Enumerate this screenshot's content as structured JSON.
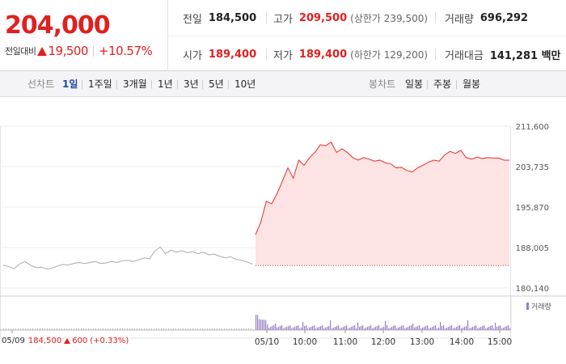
{
  "quote": {
    "price": "204,000",
    "change_label": "전일대비",
    "change_amount": "19,500",
    "change_rate": "+10.57%",
    "prev_close_label": "전일",
    "prev_close": "184,500",
    "high_label": "고가",
    "high": "209,500",
    "upper_limit": "(상한가 239,500)",
    "volume_label": "거래량",
    "volume": "696,292",
    "open_label": "시가",
    "open": "189,400",
    "low_label": "저가",
    "low": "189,400",
    "lower_limit": "(하한가 129,200)",
    "trade_value_label": "거래대금",
    "trade_value": "141,281 백만"
  },
  "toolbar": {
    "line_label": "선차트",
    "line_periods": [
      "1일",
      "1주일",
      "3개월",
      "1년",
      "3년",
      "5년",
      "10년"
    ],
    "active_period": 0,
    "candle_label": "봉차트",
    "candle_periods": [
      "일봉",
      "주봉",
      "월봉"
    ]
  },
  "footer": {
    "date": "05/09",
    "price": "184,500",
    "change": "600",
    "rate": "(+0.33%)"
  },
  "colors": {
    "up": "#e0201f",
    "line": "#e42d2d",
    "area": "#fde3e3",
    "prev_line": "#aaaaaa",
    "volume": "#9a7fc4",
    "active_tab": "#1f49a8"
  },
  "chart_data": {
    "type": "line",
    "ylim": [
      180140,
      211600
    ],
    "y_ticks": [
      "211,600",
      "203,735",
      "195,870",
      "188,005",
      "180,140"
    ],
    "y_tick_values": [
      211600,
      203735,
      195870,
      188005,
      180140
    ],
    "x_ticks": [
      "05/09",
      "05/10",
      "10:00",
      "11:00",
      "12:00",
      "13:00",
      "14:00",
      "15:00"
    ],
    "base_value": 184500,
    "volume_legend": "거래량",
    "series": [
      {
        "values": [
          184600,
          184300,
          183900,
          184800,
          185300,
          184600,
          184100,
          184200,
          183800,
          184000,
          184400,
          184700,
          184600,
          184900,
          185100,
          184900,
          185100,
          185300,
          184900,
          185000,
          185300,
          185100,
          185400,
          185500,
          185300,
          185600,
          186000,
          185800,
          187300,
          188100,
          186800,
          187500,
          187100,
          187400,
          187000,
          187200,
          186800,
          187100,
          186600,
          186700,
          186300,
          186000,
          186200,
          185700,
          185500,
          185200,
          184800
        ]
      },
      {
        "values": [
          190500,
          193000,
          197000,
          196500,
          198500,
          201000,
          203500,
          201500,
          205000,
          204000,
          205500,
          206500,
          208000,
          207800,
          208500,
          206500,
          207200,
          206500,
          205500,
          205000,
          205500,
          205200,
          204800,
          205000,
          204500,
          204300,
          203500,
          203600,
          203000,
          202700,
          203500,
          204000,
          204600,
          205000,
          204800,
          206000,
          206700,
          206300,
          206900,
          205500,
          205200,
          205600,
          205300,
          205500,
          205400,
          205400,
          205000,
          205000
        ]
      }
    ]
  }
}
